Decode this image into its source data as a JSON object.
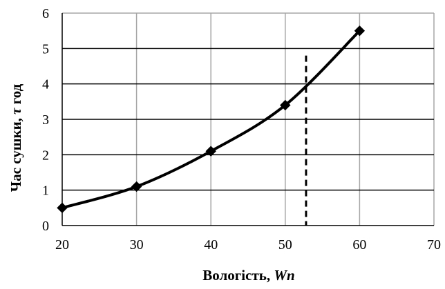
{
  "chart_data": {
    "type": "line",
    "title": "",
    "xlabel": "Вологість, Wn",
    "xlabel_main": "Вологість, ",
    "xlabel_var": "Wn",
    "ylabel": "Час сушки, τ год",
    "ylabel_main": "Час сушки, ",
    "ylabel_var": "τ",
    "ylabel_unit": " год",
    "xlim": [
      20,
      70
    ],
    "ylim": [
      0,
      6
    ],
    "x_ticks": [
      20,
      30,
      40,
      50,
      60,
      70
    ],
    "y_ticks": [
      0,
      1,
      2,
      3,
      4,
      5,
      6
    ],
    "grid": true,
    "series": [
      {
        "x": [
          20,
          30,
          40,
          50,
          60
        ],
        "y": [
          0.5,
          1.1,
          2.1,
          3.4,
          5.5
        ]
      }
    ],
    "reference_line": {
      "x": 52.8,
      "y_from": 0,
      "y_to": 4.8,
      "style": "dashed"
    },
    "colors": {
      "line": "#000000",
      "grid": "#a6a6a6",
      "axis": "#000000"
    }
  }
}
